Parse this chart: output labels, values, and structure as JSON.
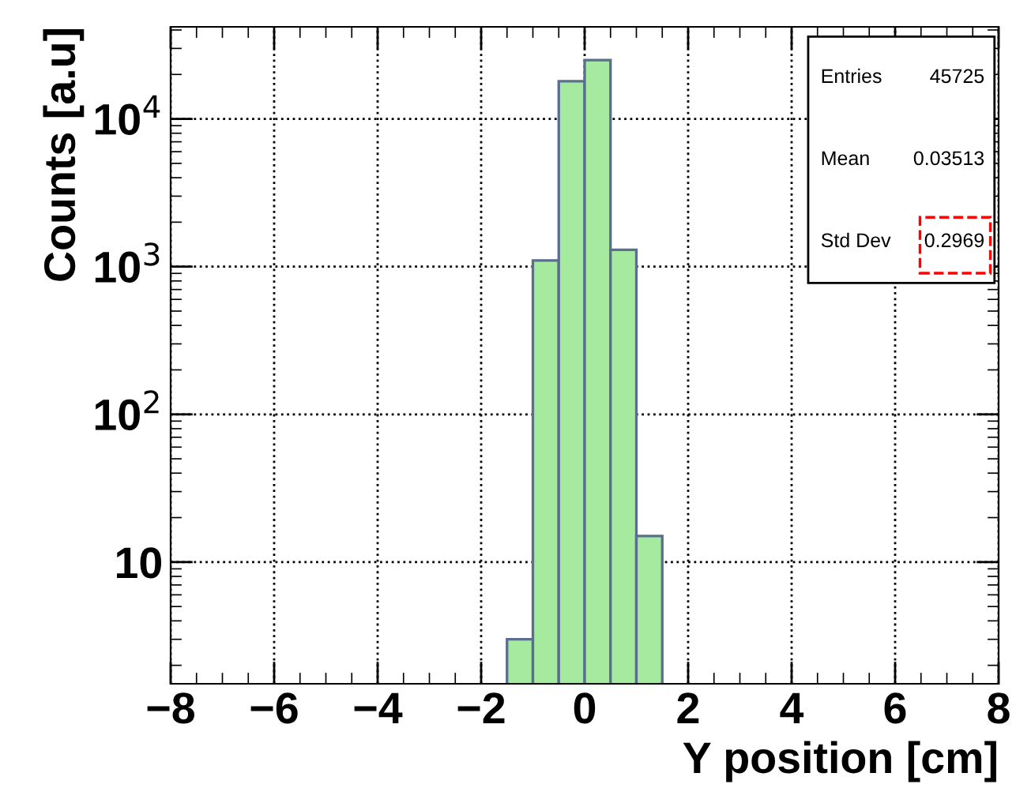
{
  "chart_data": {
    "type": "histogram",
    "xlabel": "Y position [cm]",
    "ylabel": "Counts [a.u]",
    "bins": [
      -1.5,
      -1.0,
      -0.5,
      0.0,
      0.5,
      1.0,
      1.5
    ],
    "values": [
      3,
      1100,
      18000,
      25000,
      1300,
      15
    ],
    "color": "#a6eaa0",
    "log": "y",
    "xlim": [
      -8,
      8
    ],
    "xticks": [
      {
        "value": -8,
        "label": "−8"
      },
      {
        "value": -6,
        "label": "−6"
      },
      {
        "value": -4,
        "label": "−4"
      },
      {
        "value": -2,
        "label": "−2"
      },
      0,
      2,
      4,
      6,
      8
    ],
    "ylim": [
      1.5,
      42000
    ],
    "yticks": [
      10,
      {
        "value": 100,
        "label": "10$^{2}$"
      },
      {
        "value": 1000,
        "label": "10$^{3}$"
      },
      {
        "value": 10000,
        "label": "10$^{4}$"
      }
    ],
    "grid": true,
    "annotations": [
      "Entries",
      "45725",
      "Mean",
      "0.03513",
      "Std Dev",
      "0.2969"
    ]
  }
}
